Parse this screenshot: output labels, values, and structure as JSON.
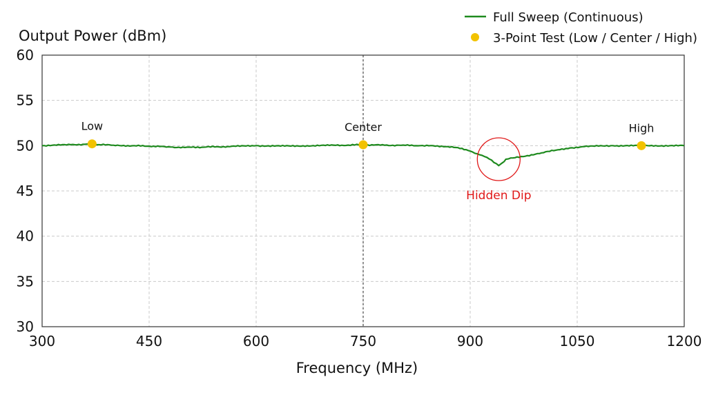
{
  "chart_data": {
    "type": "line",
    "xlabel": "Frequency (MHz)",
    "ylabel": "Output Power (dBm)",
    "xlim": [
      300,
      1200
    ],
    "ylim": [
      30,
      60
    ],
    "xticks": [
      300,
      450,
      600,
      750,
      900,
      1050,
      1200
    ],
    "yticks": [
      30,
      35,
      40,
      45,
      50,
      55,
      60
    ],
    "grid": true,
    "legend_position": "top-right",
    "center_marker_x": 750,
    "series": [
      {
        "name": "Full Sweep (Continuous)",
        "type": "line",
        "color": "#1e8a1e",
        "x": [
          300,
          320,
          340,
          360,
          370,
          380,
          400,
          420,
          450,
          480,
          500,
          530,
          560,
          600,
          640,
          680,
          720,
          750,
          780,
          800,
          830,
          860,
          880,
          900,
          910,
          920,
          930,
          940,
          945,
          950,
          960,
          980,
          1000,
          1020,
          1040,
          1060,
          1080,
          1100,
          1140,
          1180,
          1200
        ],
        "y": [
          50.0,
          50.05,
          50.1,
          50.15,
          50.2,
          50.1,
          50.05,
          50.0,
          49.95,
          49.85,
          49.8,
          49.85,
          49.9,
          50.0,
          49.95,
          50.0,
          50.05,
          50.1,
          50.05,
          50.05,
          50.0,
          49.95,
          49.8,
          49.4,
          49.1,
          48.8,
          48.4,
          47.8,
          48.1,
          48.5,
          48.65,
          48.9,
          49.2,
          49.5,
          49.75,
          49.9,
          49.95,
          50.0,
          50.0,
          50.0,
          50.0
        ]
      },
      {
        "name": "3-Point Test (Low / Center / High)",
        "type": "scatter",
        "color": "#f2c200",
        "points": [
          {
            "label": "Low",
            "x": 370,
            "y": 50.2
          },
          {
            "label": "Center",
            "x": 750,
            "y": 50.1
          },
          {
            "label": "High",
            "x": 1140,
            "y": 50.0
          }
        ]
      }
    ],
    "annotations": [
      {
        "text": "Hidden Dip",
        "x": 940,
        "y": 48.5,
        "color": "#e01818"
      }
    ]
  }
}
